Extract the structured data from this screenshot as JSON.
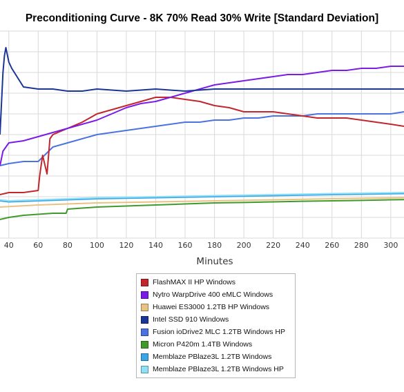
{
  "chart_data": {
    "type": "line",
    "title": "Preconditioning Curve - 8K 70% Read 30% Write [Standard Deviation]",
    "xlabel": "Minutes",
    "ylabel": "",
    "xlim": [
      34,
      309
    ],
    "ylim": [
      0,
      100
    ],
    "x_ticks": [
      40,
      60,
      80,
      100,
      120,
      140,
      160,
      180,
      200,
      220,
      240,
      260,
      280,
      300
    ],
    "grid": true,
    "legend_position": "bottom",
    "series": [
      {
        "name": "FlashMAX II HP Windows",
        "color": "#c0262c",
        "x": [
          34,
          40,
          50,
          60,
          61,
          63,
          66,
          68,
          70,
          80,
          90,
          100,
          110,
          120,
          130,
          140,
          150,
          160,
          170,
          180,
          190,
          200,
          210,
          220,
          230,
          240,
          250,
          260,
          270,
          280,
          290,
          300,
          309
        ],
        "y": [
          21,
          22,
          22,
          23,
          30,
          40,
          31,
          48,
          50,
          53,
          56,
          60,
          62,
          64,
          66,
          68,
          68,
          67,
          66,
          64,
          63,
          61,
          61,
          61,
          60,
          59,
          58,
          58,
          58,
          57,
          56,
          55,
          54
        ]
      },
      {
        "name": "Nytro WarpDrive 400 eMLC Windows",
        "color": "#7a1be6",
        "x": [
          34,
          36,
          40,
          50,
          60,
          70,
          80,
          90,
          100,
          110,
          120,
          130,
          140,
          150,
          160,
          170,
          180,
          190,
          200,
          210,
          220,
          230,
          240,
          250,
          260,
          270,
          280,
          290,
          300,
          309
        ],
        "y": [
          35,
          42,
          46,
          47,
          49,
          51,
          53,
          55,
          57,
          60,
          63,
          65,
          66,
          68,
          70,
          72,
          74,
          75,
          76,
          77,
          78,
          79,
          79,
          80,
          81,
          81,
          82,
          82,
          83,
          83
        ]
      },
      {
        "name": "Huawei ES3000 1.2TB HP Windows",
        "color": "#e8c283",
        "x": [
          34,
          60,
          80,
          100,
          140,
          180,
          220,
          260,
          309
        ],
        "y": [
          15,
          16,
          16.5,
          17,
          17.5,
          18,
          18.5,
          19,
          19.5
        ]
      },
      {
        "name": "Intel SSD 910 Windows",
        "color": "#1b3596",
        "x": [
          34,
          36,
          37,
          38,
          40,
          42,
          50,
          60,
          70,
          80,
          90,
          100,
          120,
          140,
          160,
          180,
          200,
          220,
          240,
          260,
          280,
          300,
          309
        ],
        "y": [
          50,
          80,
          88,
          92,
          85,
          82,
          73,
          72,
          72,
          71,
          71,
          72,
          71,
          72,
          71,
          72,
          72,
          72,
          72,
          72,
          72,
          72,
          72
        ]
      },
      {
        "name": "Fusion ioDrive2 MLC 1.2TB Windows HP",
        "color": "#4a72e0",
        "x": [
          34,
          40,
          50,
          60,
          70,
          80,
          90,
          100,
          110,
          120,
          130,
          140,
          150,
          160,
          170,
          180,
          190,
          200,
          210,
          220,
          230,
          240,
          250,
          260,
          270,
          280,
          290,
          300,
          309
        ],
        "y": [
          35,
          36,
          37,
          37,
          44,
          46,
          48,
          50,
          51,
          52,
          53,
          54,
          55,
          56,
          56,
          57,
          57,
          58,
          58,
          59,
          59,
          59,
          60,
          60,
          60,
          60,
          60,
          60,
          61
        ]
      },
      {
        "name": "Micron P420m 1.4TB Windows",
        "color": "#3f9a2b",
        "x": [
          34,
          40,
          50,
          60,
          70,
          79,
          80,
          90,
          100,
          120,
          140,
          160,
          180,
          200,
          220,
          240,
          260,
          280,
          300,
          309
        ],
        "y": [
          9,
          10,
          11,
          11.5,
          12,
          12,
          14,
          14.5,
          15,
          15.5,
          16,
          16.5,
          17,
          17.2,
          17.5,
          17.8,
          18,
          18.2,
          18.5,
          18.6
        ]
      },
      {
        "name": "Memblaze PBlaze3L 1.2TB Windows",
        "color": "#3aa6e8",
        "x": [
          34,
          40,
          60,
          80,
          100,
          140,
          180,
          220,
          260,
          309
        ],
        "y": [
          18,
          17.5,
          18,
          18.5,
          19,
          19.5,
          20,
          20.5,
          21,
          21.5
        ]
      },
      {
        "name": "Memblaze PBlaze3L 1.2TB Windows HP",
        "color": "#8fe0f5",
        "x": [
          34,
          40,
          60,
          80,
          100,
          140,
          180,
          220,
          260,
          309
        ],
        "y": [
          18.5,
          18,
          18.5,
          19,
          19.5,
          20,
          20.5,
          21,
          21.5,
          22
        ]
      }
    ]
  }
}
